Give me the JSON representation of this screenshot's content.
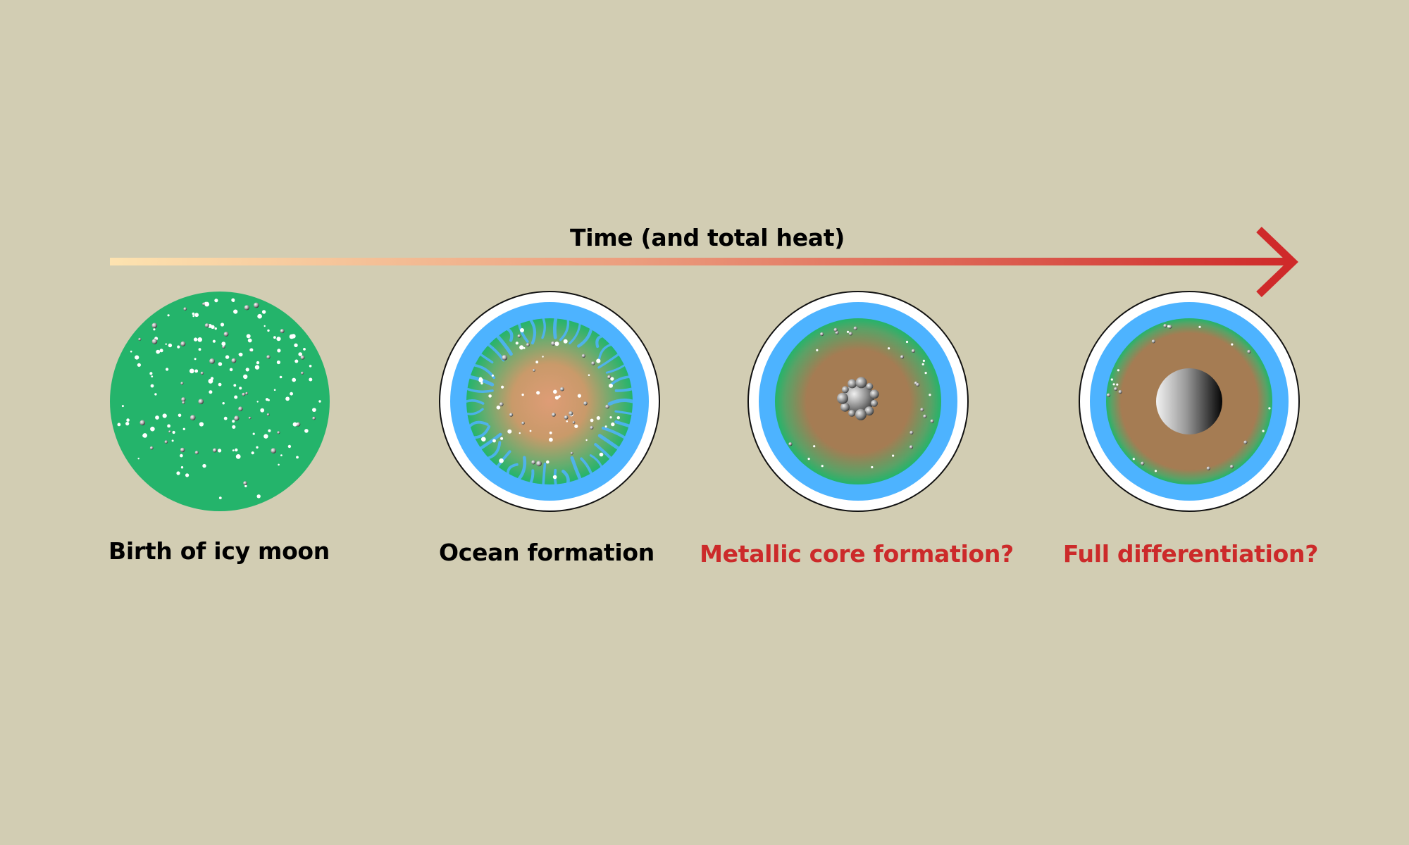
{
  "axis": {
    "label": "Time (and total heat)",
    "gradient_start": "#fde3b0",
    "gradient_end": "#cf2a2a"
  },
  "stages": [
    {
      "label": "Birth of icy moon",
      "color": "#000000"
    },
    {
      "label": "Ocean formation",
      "color": "#000000"
    },
    {
      "label": "Metallic core formation?",
      "color": "#cc2a2a"
    },
    {
      "label": "Full differentiation?",
      "color": "#cc2a2a"
    }
  ],
  "colors": {
    "background": "#d2cdb3",
    "ice_shell": "#ffffff",
    "ocean": "#4db3ff",
    "rock_ice_mix": "#24b46b",
    "rock": "#a57c53",
    "metal_core": "#8a8a8a"
  }
}
